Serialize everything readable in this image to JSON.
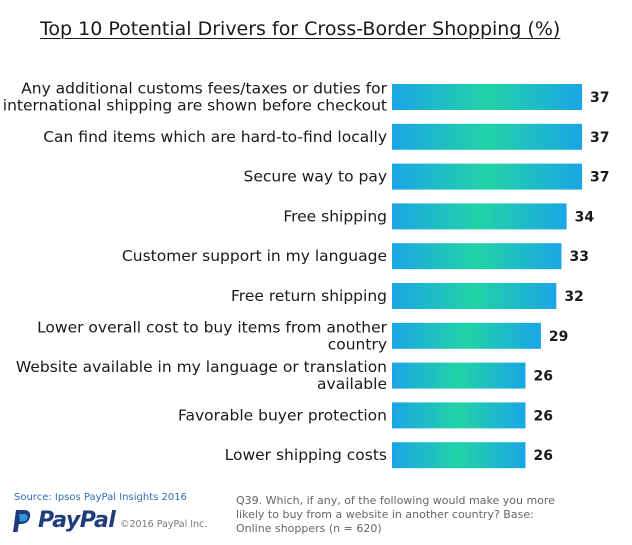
{
  "chart_data": {
    "type": "bar",
    "orientation": "horizontal",
    "title": "Top 10 Potential Drivers for Cross-Border Shopping (%)",
    "categories": [
      [
        "Any additional customs fees/taxes or duties for",
        "international shipping are shown before checkout"
      ],
      [
        "Can find items which are hard-to-find locally"
      ],
      [
        "Secure way to pay"
      ],
      [
        "Free shipping"
      ],
      [
        "Customer support in my language"
      ],
      [
        "Free return shipping"
      ],
      [
        "Lower overall cost to buy items from another",
        "country"
      ],
      [
        "Website available in my language or translation",
        "available"
      ],
      [
        "Favorable buyer protection"
      ],
      [
        "Lower shipping costs"
      ]
    ],
    "values": [
      37,
      37,
      37,
      34,
      33,
      32,
      29,
      26,
      26,
      26
    ],
    "xlim": [
      0,
      37
    ],
    "grid": false,
    "legend": "none",
    "bar_gradient": [
      "#1aa6e6",
      "#22d3a6",
      "#1aa6e6"
    ]
  },
  "footer": {
    "source": "Source: Ipsos PayPal Insights 2016",
    "brand": "PayPal",
    "copyright": "©2016 PayPal Inc.",
    "note": "Q39. Which, if any, of the following would make you more likely to buy from a website in another country? Base: Online shoppers (n = 620)"
  }
}
